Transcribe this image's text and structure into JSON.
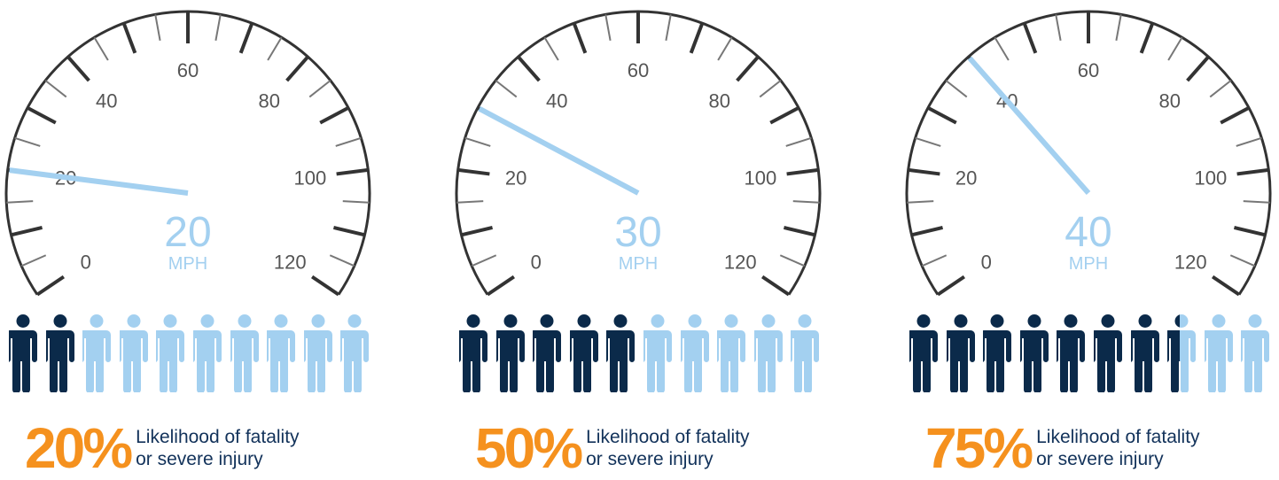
{
  "colors": {
    "dark": "#0b2a4a",
    "light": "#a3d0f0",
    "orange": "#f5911e",
    "dial": "#333333",
    "text_navy": "#12325a"
  },
  "gauges": [
    {
      "speed": 20,
      "speed_label": "20",
      "unit": "MPH",
      "figures_total": 10,
      "figures_highlighted": 2,
      "percent_label": "20%",
      "desc_line1": "Likelihood of fatality",
      "desc_line2": "or severe injury"
    },
    {
      "speed": 30,
      "speed_label": "30",
      "unit": "MPH",
      "figures_total": 10,
      "figures_highlighted": 5,
      "percent_label": "50%",
      "desc_line1": "Likelihood of fatality",
      "desc_line2": "or severe injury"
    },
    {
      "speed": 40,
      "speed_label": "40",
      "unit": "MPH",
      "figures_total": 10,
      "figures_highlighted": 7.5,
      "percent_label": "75%",
      "desc_line1": "Likelihood of fatality",
      "desc_line2": "or severe injury"
    }
  ],
  "dial": {
    "min": 0,
    "max": 120,
    "tick_labels": [
      "0",
      "20",
      "40",
      "60",
      "80",
      "100",
      "120"
    ]
  }
}
